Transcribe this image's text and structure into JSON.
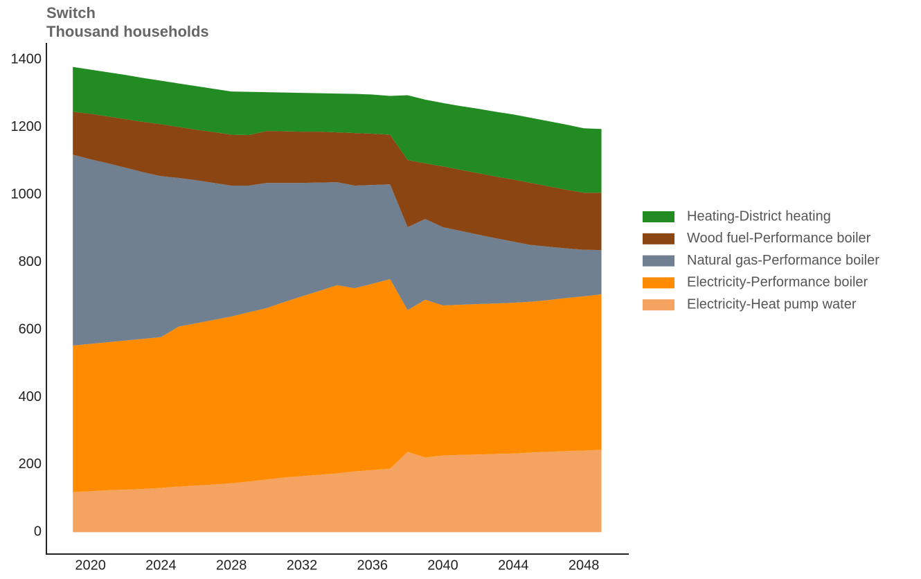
{
  "chart_data": {
    "type": "stacked_area",
    "title": "Switch",
    "subtitle": "Thousand households",
    "x": [
      2019,
      2020,
      2021,
      2022,
      2023,
      2024,
      2025,
      2026,
      2027,
      2028,
      2029,
      2030,
      2031,
      2032,
      2033,
      2034,
      2035,
      2036,
      2037,
      2038,
      2039,
      2040,
      2041,
      2042,
      2043,
      2044,
      2045,
      2046,
      2047,
      2048,
      2049
    ],
    "series": [
      {
        "name": "Electricity-Heat pump water",
        "color": "#f4a460",
        "values": [
          119,
          121,
          124,
          126,
          128,
          131,
          135,
          138,
          141,
          145,
          150,
          156,
          162,
          166,
          170,
          174,
          180,
          184,
          188,
          238,
          221,
          227,
          229,
          230,
          232,
          233,
          236,
          238,
          240,
          242,
          244
        ]
      },
      {
        "name": "Electricity-Performance boiler",
        "color": "#ff8c00",
        "values": [
          434,
          437,
          439,
          442,
          445,
          447,
          474,
          481,
          488,
          494,
          502,
          508,
          520,
          533,
          545,
          558,
          543,
          552,
          562,
          420,
          468,
          445,
          445,
          446,
          446,
          447,
          447,
          450,
          454,
          457,
          461
        ]
      },
      {
        "name": "Natural gas-Performance boiler",
        "color": "#708090",
        "values": [
          566,
          547,
          530,
          512,
          494,
          477,
          441,
          424,
          406,
          388,
          375,
          371,
          353,
          336,
          321,
          305,
          304,
          293,
          281,
          246,
          239,
          232,
          219,
          206,
          193,
          181,
          168,
          158,
          147,
          138,
          131
        ]
      },
      {
        "name": "Wood fuel-Performance boiler",
        "color": "#8b4513",
        "values": [
          127,
          135,
          139,
          144,
          149,
          154,
          151,
          150,
          151,
          151,
          150,
          154,
          153,
          152,
          151,
          148,
          156,
          152,
          147,
          199,
          165,
          180,
          181,
          182,
          183,
          184,
          184,
          179,
          174,
          169,
          170
        ]
      },
      {
        "name": "Heating-District heating",
        "color": "#228b22",
        "values": [
          133,
          131,
          131,
          131,
          130,
          129,
          129,
          129,
          128,
          128,
          128,
          115,
          115,
          115,
          114,
          115,
          116,
          116,
          115,
          192,
          189,
          188,
          189,
          191,
          192,
          193,
          193,
          193,
          193,
          191,
          189
        ]
      }
    ],
    "xlim": [
      2017.5,
      2050.55
    ],
    "xticks": [
      2020,
      2024,
      2028,
      2032,
      2036,
      2040,
      2044,
      2048
    ],
    "ylim": [
      -65,
      1450
    ],
    "yticks": [
      0,
      200,
      400,
      600,
      800,
      1000,
      1200,
      1400
    ],
    "legend": "right"
  }
}
